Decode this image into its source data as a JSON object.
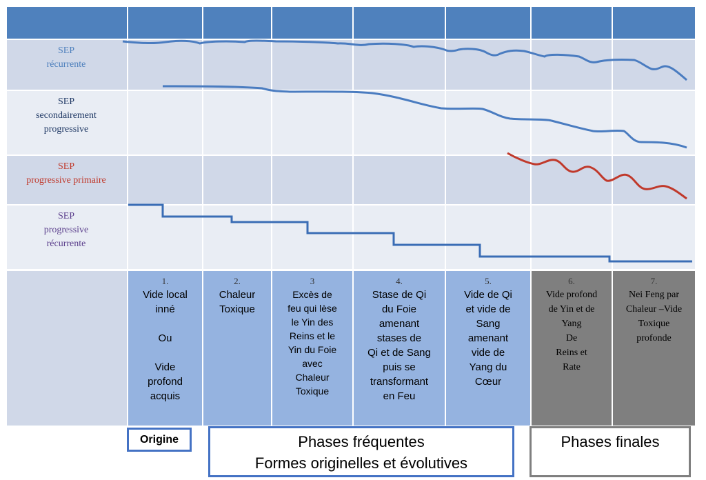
{
  "rows": [
    {
      "lines": [
        "SEP",
        "récurrente"
      ],
      "color": "#4f81bd"
    },
    {
      "lines": [
        "SEP",
        "secondairement",
        "progressive"
      ],
      "color": "#1f3864"
    },
    {
      "lines": [
        "SEP",
        "progressive primaire"
      ],
      "color": "#c0392b"
    },
    {
      "lines": [
        "SEP",
        "progressive",
        "récurrente"
      ],
      "color": "#5b3f8c"
    }
  ],
  "phases": [
    {
      "number": "1.",
      "text": "Vide local\ninné\n\nOu\n\nVide\nprofond\nacquis"
    },
    {
      "number": "2.",
      "text": "Chaleur\nToxique"
    },
    {
      "number": "3",
      "text": "Excès de\nfeu qui lèse\nle Yin des\nReins et le\nYin du Foie\navec\nChaleur\nToxique"
    },
    {
      "number": "4.",
      "text": "Stase de Qi\ndu Foie\namenant\nstases de\nQi et de Sang\npuis se\ntransformant\nen Feu"
    },
    {
      "number": "5.",
      "text": "Vide de Qi\net vide de\nSang\namenant\nvide de\nYang du\nCœur"
    },
    {
      "number": "6.",
      "text": "Vide profond\nde Yin et de\nYang\nDe\nReins et\nRate"
    },
    {
      "number": "7.",
      "text": "Nei Feng par\nChaleur –Vide\nToxique\nprofonde"
    }
  ],
  "bottom": {
    "origine": "Origine",
    "frequentes_line1": "Phases fréquentes",
    "frequentes_line2": "Formes originelles et évolutives",
    "finales": "Phases finales"
  },
  "colors": {
    "header": "#4f81bd",
    "curve_blue": "#4a7cc0",
    "curve_red": "#c0392b",
    "phase_blue": "#95b3e0",
    "phase_grey": "#7f7f7f"
  }
}
